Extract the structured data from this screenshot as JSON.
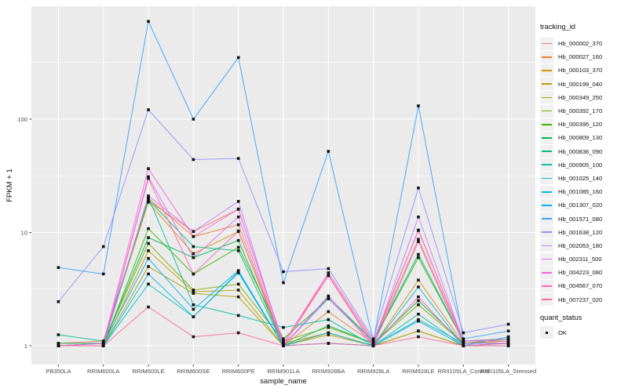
{
  "theme": {
    "background": "#FFFFFF",
    "panel_bg": "#EBEBEB",
    "grid_color": "#FFFFFF",
    "axis_text_color": "#4D4D4D",
    "tick_color": "#333333",
    "point_color": "#111111",
    "legend_key_bg": "#F0F0F0"
  },
  "legend": {
    "tracking_title": "tracking_id",
    "quant_title": "quant_status",
    "quant_items": [
      {
        "label": "OK",
        "marker": "black-filled-square"
      }
    ]
  },
  "chart_data": {
    "type": "line",
    "title": "",
    "xlabel": "sample_name",
    "ylabel": "FPKM + 1",
    "y_scale": "log10",
    "grid": true,
    "legend_position": "right",
    "point_shape": "filled-square",
    "ylim": [
      0.68,
      990
    ],
    "y_ticks": [
      1,
      10,
      100
    ],
    "y_tick_labels": [
      "1",
      "10",
      "100"
    ],
    "y_minor_ticks": [
      3.162,
      31.62,
      316.2
    ],
    "categories": [
      "PB350LA",
      "RRIM600LA",
      "RRIM600LE",
      "RRIM600SE",
      "RRIM600PE",
      "RRIM901LA",
      "RRIM928BA",
      "RRIM928LA",
      "RRIM928LE",
      "RRII105LA_Control",
      "RRII105LA_Stressed"
    ],
    "values_are": "FPKM + 1 (approximate, read from log axis)",
    "series": [
      {
        "name": "Hb_000002_370",
        "color": "#F8766D",
        "values": [
          1.05,
          1.1,
          19.0,
          10.2,
          16.0,
          1.05,
          4.2,
          1.05,
          10.5,
          1.1,
          1.1
        ]
      },
      {
        "name": "Hb_000027_160",
        "color": "#EA8331",
        "values": [
          1.0,
          1.05,
          20.0,
          9.2,
          11.7,
          1.0,
          2.0,
          1.05,
          8.7,
          1.1,
          1.15
        ]
      },
      {
        "name": "Hb_000103_370",
        "color": "#D89000",
        "values": [
          1.0,
          1.05,
          18.5,
          6.5,
          10.2,
          1.05,
          1.3,
          1.0,
          3.8,
          1.05,
          1.1
        ]
      },
      {
        "name": "Hb_000199_040",
        "color": "#C09B00",
        "values": [
          1.0,
          1.0,
          6.9,
          3.0,
          3.1,
          1.0,
          1.25,
          1.0,
          1.35,
          1.0,
          1.05
        ]
      },
      {
        "name": "Hb_000349_250",
        "color": "#A3A500",
        "values": [
          1.0,
          1.0,
          5.0,
          2.9,
          2.7,
          1.0,
          1.3,
          1.0,
          1.35,
          1.0,
          1.0
        ]
      },
      {
        "name": "Hb_000392_170",
        "color": "#7CAE00",
        "values": [
          1.0,
          1.05,
          8.0,
          3.1,
          3.5,
          1.1,
          1.45,
          1.05,
          2.3,
          1.05,
          1.15
        ]
      },
      {
        "name": "Hb_000395_120",
        "color": "#39B600",
        "values": [
          1.0,
          1.0,
          10.8,
          4.3,
          7.4,
          1.15,
          2.6,
          1.1,
          6.0,
          1.1,
          1.15
        ]
      },
      {
        "name": "Hb_000809_130",
        "color": "#00BB4E",
        "values": [
          1.05,
          1.05,
          9.0,
          6.0,
          8.5,
          1.0,
          1.5,
          1.05,
          2.5,
          1.05,
          1.05
        ]
      },
      {
        "name": "Hb_000836_090",
        "color": "#00BF7D",
        "values": [
          1.25,
          1.1,
          19.5,
          7.5,
          6.9,
          1.0,
          2.7,
          1.1,
          6.4,
          1.1,
          1.1
        ]
      },
      {
        "name": "Hb_000905_100",
        "color": "#00C1A3",
        "values": [
          1.0,
          1.0,
          20.5,
          2.3,
          1.85,
          1.45,
          1.7,
          1.0,
          1.9,
          1.0,
          1.05
        ]
      },
      {
        "name": "Hb_001025_140",
        "color": "#00BFC4",
        "values": [
          1.0,
          1.0,
          3.5,
          1.8,
          4.4,
          1.0,
          1.05,
          1.0,
          1.7,
          1.05,
          1.05
        ]
      },
      {
        "name": "Hb_001085_160",
        "color": "#00BAE0",
        "values": [
          1.0,
          1.0,
          4.3,
          1.8,
          4.5,
          1.0,
          1.3,
          1.0,
          3.3,
          1.0,
          1.0
        ]
      },
      {
        "name": "Hb_001307_020",
        "color": "#00B0F6",
        "values": [
          1.0,
          1.05,
          5.9,
          2.1,
          4.6,
          1.0,
          1.05,
          1.0,
          1.65,
          1.0,
          1.2
        ]
      },
      {
        "name": "Hb_001571_080",
        "color": "#35A2FF",
        "values": [
          4.9,
          4.3,
          730,
          100,
          350,
          3.6,
          52.0,
          1.1,
          131,
          1.15,
          1.35
        ]
      },
      {
        "name": "Hb_001638_120",
        "color": "#9590FF",
        "values": [
          2.45,
          7.5,
          121,
          44.0,
          45.0,
          4.5,
          4.8,
          1.15,
          24.7,
          1.3,
          1.55
        ]
      },
      {
        "name": "Hb_002053_180",
        "color": "#C77CFF",
        "values": [
          1.0,
          1.0,
          21.0,
          10.2,
          18.8,
          1.0,
          2.6,
          1.05,
          13.7,
          1.1,
          1.15
        ]
      },
      {
        "name": "Hb_002311_500",
        "color": "#E76BF3",
        "values": [
          1.0,
          1.0,
          31.0,
          6.0,
          13.7,
          1.0,
          2.75,
          1.0,
          8.3,
          1.05,
          1.05
        ]
      },
      {
        "name": "Hb_004223_080",
        "color": "#FA62DB",
        "values": [
          1.0,
          1.05,
          36.6,
          9.2,
          16.1,
          1.05,
          4.4,
          1.1,
          10.4,
          1.1,
          1.1
        ]
      },
      {
        "name": "Hb_004567_070",
        "color": "#FF62BC",
        "values": [
          1.0,
          1.0,
          30.0,
          4.3,
          10.3,
          1.0,
          4.15,
          1.0,
          2.7,
          1.0,
          1.05
        ]
      },
      {
        "name": "Hb_007237_020",
        "color": "#FF6A98",
        "values": [
          1.0,
          1.0,
          2.2,
          1.2,
          1.3,
          1.0,
          1.05,
          1.0,
          1.2,
          1.0,
          1.0
        ]
      }
    ]
  }
}
